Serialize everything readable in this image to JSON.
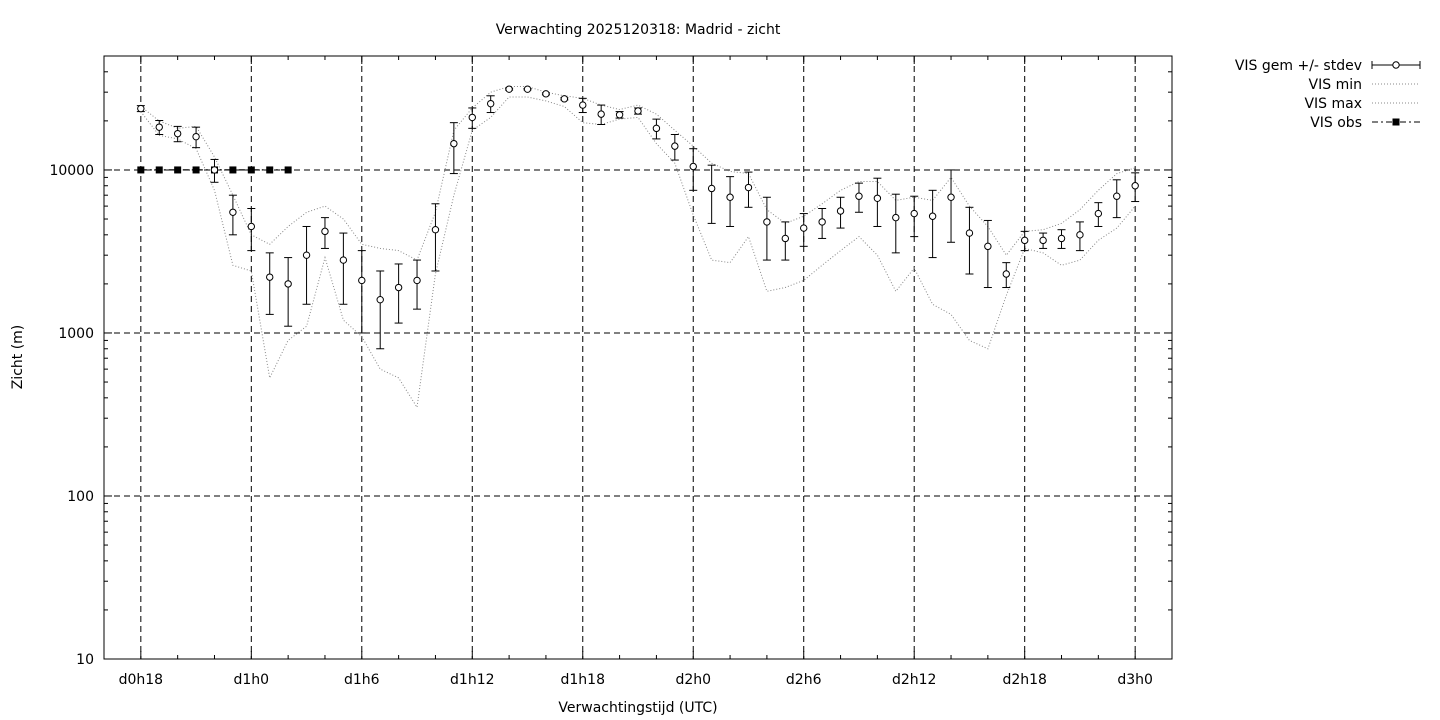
{
  "chart_data": {
    "type": "line",
    "title": "Verwachting 2025120318: Madrid - zicht",
    "xlabel": "Verwachtingstijd (UTC)",
    "ylabel": "Zicht (m)",
    "y_scale": "log",
    "ylim": [
      10,
      50000
    ],
    "xlim_hours": [
      16,
      74
    ],
    "x_ticks": [
      {
        "hour": 18,
        "label": "d0h18"
      },
      {
        "hour": 24,
        "label": "d1h0"
      },
      {
        "hour": 30,
        "label": "d1h6"
      },
      {
        "hour": 36,
        "label": "d1h12"
      },
      {
        "hour": 42,
        "label": "d1h18"
      },
      {
        "hour": 48,
        "label": "d2h0"
      },
      {
        "hour": 54,
        "label": "d2h6"
      },
      {
        "hour": 60,
        "label": "d2h12"
      },
      {
        "hour": 66,
        "label": "d2h18"
      },
      {
        "hour": 72,
        "label": "d3h0"
      }
    ],
    "y_ticks": [
      {
        "value": 10,
        "label": "10"
      },
      {
        "value": 100,
        "label": "100"
      },
      {
        "value": 1000,
        "label": "1000"
      },
      {
        "value": 10000,
        "label": "10000"
      }
    ],
    "grid": true,
    "legend_position": "outside-right",
    "legend": [
      {
        "key": "mean",
        "label": "VIS gem +/- stdev"
      },
      {
        "key": "min",
        "label": "VIS min"
      },
      {
        "key": "max",
        "label": "VIS max"
      },
      {
        "key": "obs",
        "label": "VIS obs"
      }
    ],
    "series": [
      {
        "key": "mean",
        "name": "VIS gem +/- stdev",
        "style": "points-errorbars",
        "hours": [
          18,
          19,
          20,
          21,
          22,
          23,
          24,
          25,
          26,
          27,
          28,
          29,
          30,
          31,
          32,
          33,
          34,
          35,
          36,
          37,
          38,
          39,
          40,
          41,
          42,
          43,
          44,
          45,
          46,
          47,
          48,
          49,
          50,
          51,
          52,
          53,
          54,
          55,
          56,
          57,
          58,
          59,
          60,
          61,
          62,
          63,
          64,
          65,
          66,
          67,
          68,
          69,
          70,
          71,
          72
        ],
        "values": [
          23800,
          18300,
          16700,
          16000,
          10000,
          5500,
          4500,
          2200,
          2000,
          3000,
          4200,
          2800,
          2100,
          1600,
          1900,
          2100,
          4300,
          14500,
          21000,
          25500,
          31300,
          31300,
          29300,
          27300,
          25000,
          22000,
          21800,
          23000,
          18000,
          14000,
          10500,
          7700,
          6800,
          7800,
          4800,
          3800,
          4400,
          4800,
          5600,
          6900,
          6700,
          5100,
          5400,
          5200,
          6800,
          4100,
          3400,
          2300,
          3700,
          3700,
          3800,
          4000,
          5400,
          6900,
          8000
        ],
        "errors": [
          1000,
          1800,
          1800,
          2300,
          1600,
          1500,
          1300,
          900,
          900,
          1500,
          900,
          1300,
          1100,
          800,
          750,
          700,
          1900,
          5000,
          3000,
          3000,
          400,
          300,
          400,
          400,
          2500,
          3000,
          1000,
          1000,
          2500,
          2500,
          3000,
          3000,
          2300,
          1900,
          2000,
          1000,
          1000,
          1000,
          1200,
          1400,
          2200,
          2000,
          1500,
          2300,
          3200,
          1800,
          1500,
          400,
          500,
          400,
          500,
          800,
          900,
          1800,
          1600
        ]
      },
      {
        "key": "min",
        "name": "VIS min",
        "style": "dotted",
        "hours": [
          18,
          19,
          20,
          21,
          22,
          23,
          24,
          25,
          26,
          27,
          28,
          29,
          30,
          31,
          32,
          33,
          34,
          35,
          36,
          37,
          38,
          39,
          40,
          41,
          42,
          43,
          44,
          45,
          46,
          47,
          48,
          49,
          50,
          51,
          52,
          53,
          54,
          55,
          56,
          57,
          58,
          59,
          60,
          61,
          62,
          63,
          64,
          65,
          66,
          67,
          68,
          69,
          70,
          71,
          72
        ],
        "values": [
          22800,
          16300,
          15500,
          13500,
          7500,
          2600,
          2400,
          530,
          900,
          1100,
          2900,
          1200,
          950,
          600,
          530,
          350,
          2300,
          7000,
          17500,
          21000,
          28000,
          28000,
          26500,
          24500,
          19500,
          19000,
          20500,
          21000,
          14500,
          11000,
          5300,
          2800,
          2700,
          3900,
          1800,
          1900,
          2100,
          2600,
          3200,
          3900,
          3000,
          1800,
          2500,
          1500,
          1300,
          900,
          800,
          1700,
          3300,
          3100,
          2600,
          2800,
          3700,
          4400,
          6000
        ]
      },
      {
        "key": "max",
        "name": "VIS max",
        "style": "dotted",
        "hours": [
          18,
          19,
          20,
          21,
          22,
          23,
          24,
          25,
          26,
          27,
          28,
          29,
          30,
          31,
          32,
          33,
          34,
          35,
          36,
          37,
          38,
          39,
          40,
          41,
          42,
          43,
          44,
          45,
          46,
          47,
          48,
          49,
          50,
          51,
          52,
          53,
          54,
          55,
          56,
          57,
          58,
          59,
          60,
          61,
          62,
          63,
          64,
          65,
          66,
          67,
          68,
          69,
          70,
          71,
          72
        ],
        "values": [
          24500,
          20000,
          18000,
          18500,
          12000,
          7000,
          4000,
          3500,
          4500,
          5500,
          6000,
          5000,
          3500,
          3300,
          3200,
          2800,
          5500,
          17500,
          24000,
          30000,
          32500,
          32500,
          30000,
          28500,
          27500,
          25000,
          23500,
          25000,
          22000,
          17500,
          14000,
          11000,
          9800,
          9500,
          5700,
          4700,
          5200,
          6200,
          7500,
          8500,
          8500,
          6500,
          6800,
          6500,
          9000,
          6000,
          4500,
          3000,
          4200,
          4300,
          4700,
          5700,
          7500,
          9500,
          10300
        ]
      },
      {
        "key": "obs",
        "name": "VIS obs",
        "style": "dash-dot-squares",
        "hours": [
          18,
          19,
          20,
          21,
          22,
          23,
          24,
          25,
          26
        ],
        "values": [
          10000,
          10000,
          10000,
          10000,
          10000,
          10000,
          10000,
          10000,
          10000
        ]
      }
    ]
  }
}
